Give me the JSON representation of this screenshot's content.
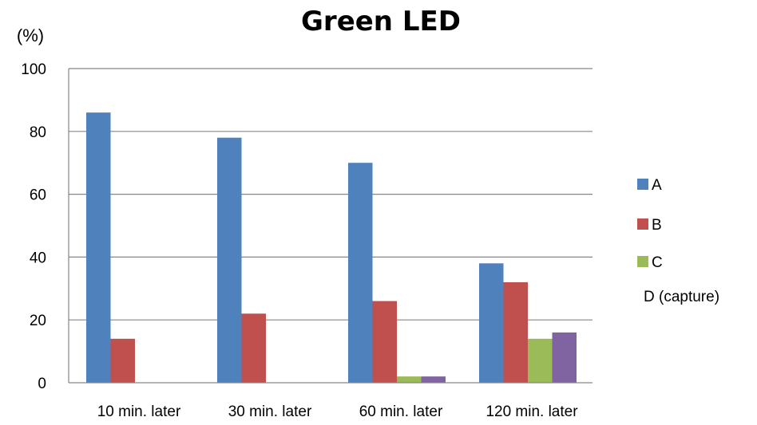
{
  "chart_data": {
    "type": "bar",
    "title": "Green LED",
    "ylabel": "(%)",
    "xlabel": "",
    "ylim": [
      0,
      100
    ],
    "yticks": [
      0,
      20,
      40,
      60,
      80,
      100
    ],
    "grid": true,
    "legend": "right",
    "categories": [
      "10 min. later",
      "30 min. later",
      "60 min. later",
      "120 min. later"
    ],
    "series": [
      {
        "name": "A",
        "color": "#4F81BD",
        "values": [
          86,
          78,
          70,
          38
        ]
      },
      {
        "name": "B",
        "color": "#C0504D",
        "values": [
          14,
          22,
          26,
          32
        ]
      },
      {
        "name": "C",
        "color": "#9BBB59",
        "values": [
          0,
          0,
          2,
          14
        ]
      },
      {
        "name": "D (capture)",
        "color": "#8064A2",
        "values": [
          0,
          0,
          2,
          16
        ]
      }
    ]
  }
}
